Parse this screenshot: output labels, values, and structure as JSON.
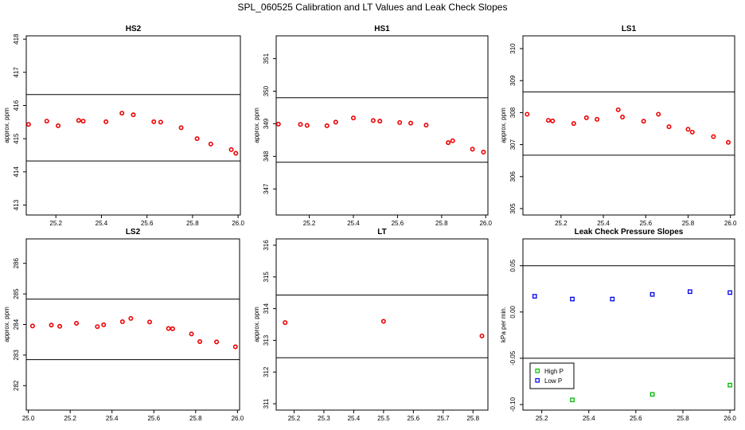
{
  "chart_data": {
    "suptitle": "SPL_060525  Calibration and LT Values and Leak Check Slopes",
    "panels": [
      {
        "title": "HS2",
        "type": "scatter",
        "ylabel": "approx. ppm",
        "xlim": [
          25.07,
          26.01
        ],
        "ylim": [
          412.7,
          418.1
        ],
        "xticks": [
          25.2,
          25.4,
          25.6,
          25.8,
          26.0
        ],
        "xticklabels": [
          "25.2",
          "25.4",
          "25.6",
          "25.8",
          "26.0"
        ],
        "yticks": [
          413,
          414,
          415,
          416,
          417,
          418
        ],
        "yticklabels": [
          "413",
          "414",
          "415",
          "416",
          "417",
          "418"
        ],
        "hlines": [
          416.33,
          414.33
        ],
        "series": [
          {
            "name": "",
            "color": "#ee0000",
            "marker": "circle",
            "x": [
              25.08,
              25.16,
              25.21,
              25.3,
              25.32,
              25.42,
              25.49,
              25.54,
              25.63,
              25.66,
              25.75,
              25.82,
              25.88,
              25.97,
              25.99
            ],
            "y": [
              415.43,
              415.53,
              415.39,
              415.55,
              415.53,
              415.51,
              415.77,
              415.72,
              415.51,
              415.5,
              415.33,
              415.0,
              414.84,
              414.67,
              414.56
            ]
          }
        ]
      },
      {
        "title": "HS1",
        "type": "scatter",
        "ylabel": "approx. ppm",
        "xlim": [
          25.05,
          26.01
        ],
        "ylim": [
          346.2,
          351.7
        ],
        "xticks": [
          25.2,
          25.4,
          25.6,
          25.8,
          26.0
        ],
        "xticklabels": [
          "25.2",
          "25.4",
          "25.6",
          "25.8",
          "26.0"
        ],
        "yticks": [
          347,
          348,
          349,
          350,
          351
        ],
        "yticklabels": [
          "347",
          "348",
          "349",
          "350",
          "351"
        ],
        "hlines": [
          349.8,
          347.82
        ],
        "series": [
          {
            "name": "",
            "color": "#ee0000",
            "marker": "circle",
            "x": [
              25.06,
              25.16,
              25.19,
              25.28,
              25.32,
              25.4,
              25.49,
              25.52,
              25.61,
              25.66,
              25.73,
              25.83,
              25.85,
              25.94,
              25.99
            ],
            "y": [
              348.99,
              348.98,
              348.95,
              348.94,
              349.05,
              349.18,
              349.1,
              349.08,
              349.04,
              349.02,
              348.96,
              348.42,
              348.48,
              348.22,
              348.13
            ]
          }
        ]
      },
      {
        "title": "LS1",
        "type": "scatter",
        "ylabel": "approx. ppm",
        "xlim": [
          25.02,
          26.02
        ],
        "ylim": [
          304.8,
          310.4
        ],
        "xticks": [
          25.2,
          25.4,
          25.6,
          25.8,
          26.0
        ],
        "xticklabels": [
          "25.2",
          "25.4",
          "25.6",
          "25.8",
          "26.0"
        ],
        "yticks": [
          305,
          306,
          307,
          308,
          309,
          310
        ],
        "yticklabels": [
          "305",
          "306",
          "307",
          "308",
          "309",
          "310"
        ],
        "hlines": [
          308.65,
          306.67
        ],
        "series": [
          {
            "name": "",
            "color": "#ee0000",
            "marker": "circle",
            "x": [
              25.04,
              25.14,
              25.16,
              25.26,
              25.32,
              25.37,
              25.47,
              25.49,
              25.59,
              25.66,
              25.71,
              25.8,
              25.82,
              25.92,
              25.99
            ],
            "y": [
              307.95,
              307.76,
              307.74,
              307.66,
              307.84,
              307.79,
              308.09,
              307.86,
              307.73,
              307.95,
              307.56,
              307.48,
              307.39,
              307.25,
              307.07
            ]
          }
        ]
      },
      {
        "title": "LS2",
        "type": "scatter",
        "ylabel": "approx. ppm",
        "xlim": [
          24.99,
          26.01
        ],
        "ylim": [
          281.2,
          286.8
        ],
        "xticks": [
          25.0,
          25.2,
          25.4,
          25.6,
          25.8,
          26.0
        ],
        "xticklabels": [
          "25.0",
          "25.2",
          "25.4",
          "25.6",
          "25.8",
          "26.0"
        ],
        "yticks": [
          282,
          283,
          284,
          285,
          286
        ],
        "yticklabels": [
          "282",
          "283",
          "284",
          "285",
          "286"
        ],
        "hlines": [
          284.83,
          282.85
        ],
        "series": [
          {
            "name": "",
            "color": "#ee0000",
            "marker": "circle",
            "x": [
              25.02,
              25.11,
              25.15,
              25.23,
              25.33,
              25.36,
              25.45,
              25.49,
              25.58,
              25.67,
              25.69,
              25.78,
              25.82,
              25.9,
              25.99
            ],
            "y": [
              283.95,
              283.98,
              283.94,
              284.04,
              283.93,
              283.99,
              284.09,
              284.2,
              284.08,
              283.87,
              283.86,
              283.69,
              283.44,
              283.43,
              283.27
            ]
          }
        ]
      },
      {
        "title": "LT",
        "type": "scatter",
        "ylabel": "approx. ppm",
        "xlim": [
          25.14,
          25.85
        ],
        "ylim": [
          310.8,
          316.2
        ],
        "xticks": [
          25.2,
          25.3,
          25.4,
          25.5,
          25.6,
          25.7,
          25.8
        ],
        "xticklabels": [
          "25.2",
          "25.3",
          "25.4",
          "25.5",
          "25.6",
          "25.7",
          "25.8"
        ],
        "yticks": [
          311,
          312,
          313,
          314,
          315,
          316
        ],
        "yticklabels": [
          "311",
          "312",
          "313",
          "314",
          "315",
          "316"
        ],
        "hlines": [
          314.43,
          312.45
        ],
        "series": [
          {
            "name": "",
            "color": "#ee0000",
            "marker": "circle",
            "x": [
              25.17,
              25.5,
              25.83
            ],
            "y": [
              313.56,
              313.6,
              313.14
            ]
          }
        ]
      },
      {
        "title": "Leak Check Pressure Slopes",
        "type": "scatter",
        "ylabel": "kPa per min.",
        "xlim": [
          25.12,
          26.02
        ],
        "ylim": [
          -0.106,
          0.079
        ],
        "xticks": [
          25.2,
          25.4,
          25.6,
          25.8,
          26.0
        ],
        "xticklabels": [
          "25.2",
          "25.4",
          "25.6",
          "25.8",
          "26.0"
        ],
        "yticks": [
          -0.1,
          -0.05,
          0.0,
          0.05
        ],
        "yticklabels": [
          "-0.10",
          "-0.05",
          "0.00",
          "0.05"
        ],
        "hlines": [
          0.05,
          -0.05
        ],
        "legend": {
          "location": "bottom-left",
          "entries": [
            "High P",
            "Low P"
          ]
        },
        "series": [
          {
            "name": "High P",
            "color": "#00bb00",
            "marker": "square",
            "x": [
              25.33,
              25.67,
              26.0
            ],
            "y": [
              -0.095,
              -0.089,
              -0.079
            ]
          },
          {
            "name": "Low P",
            "color": "#0000ee",
            "marker": "square",
            "x": [
              25.17,
              25.33,
              25.5,
              25.67,
              25.83,
              26.0
            ],
            "y": [
              0.017,
              0.014,
              0.014,
              0.019,
              0.022,
              0.021
            ]
          }
        ]
      }
    ]
  }
}
